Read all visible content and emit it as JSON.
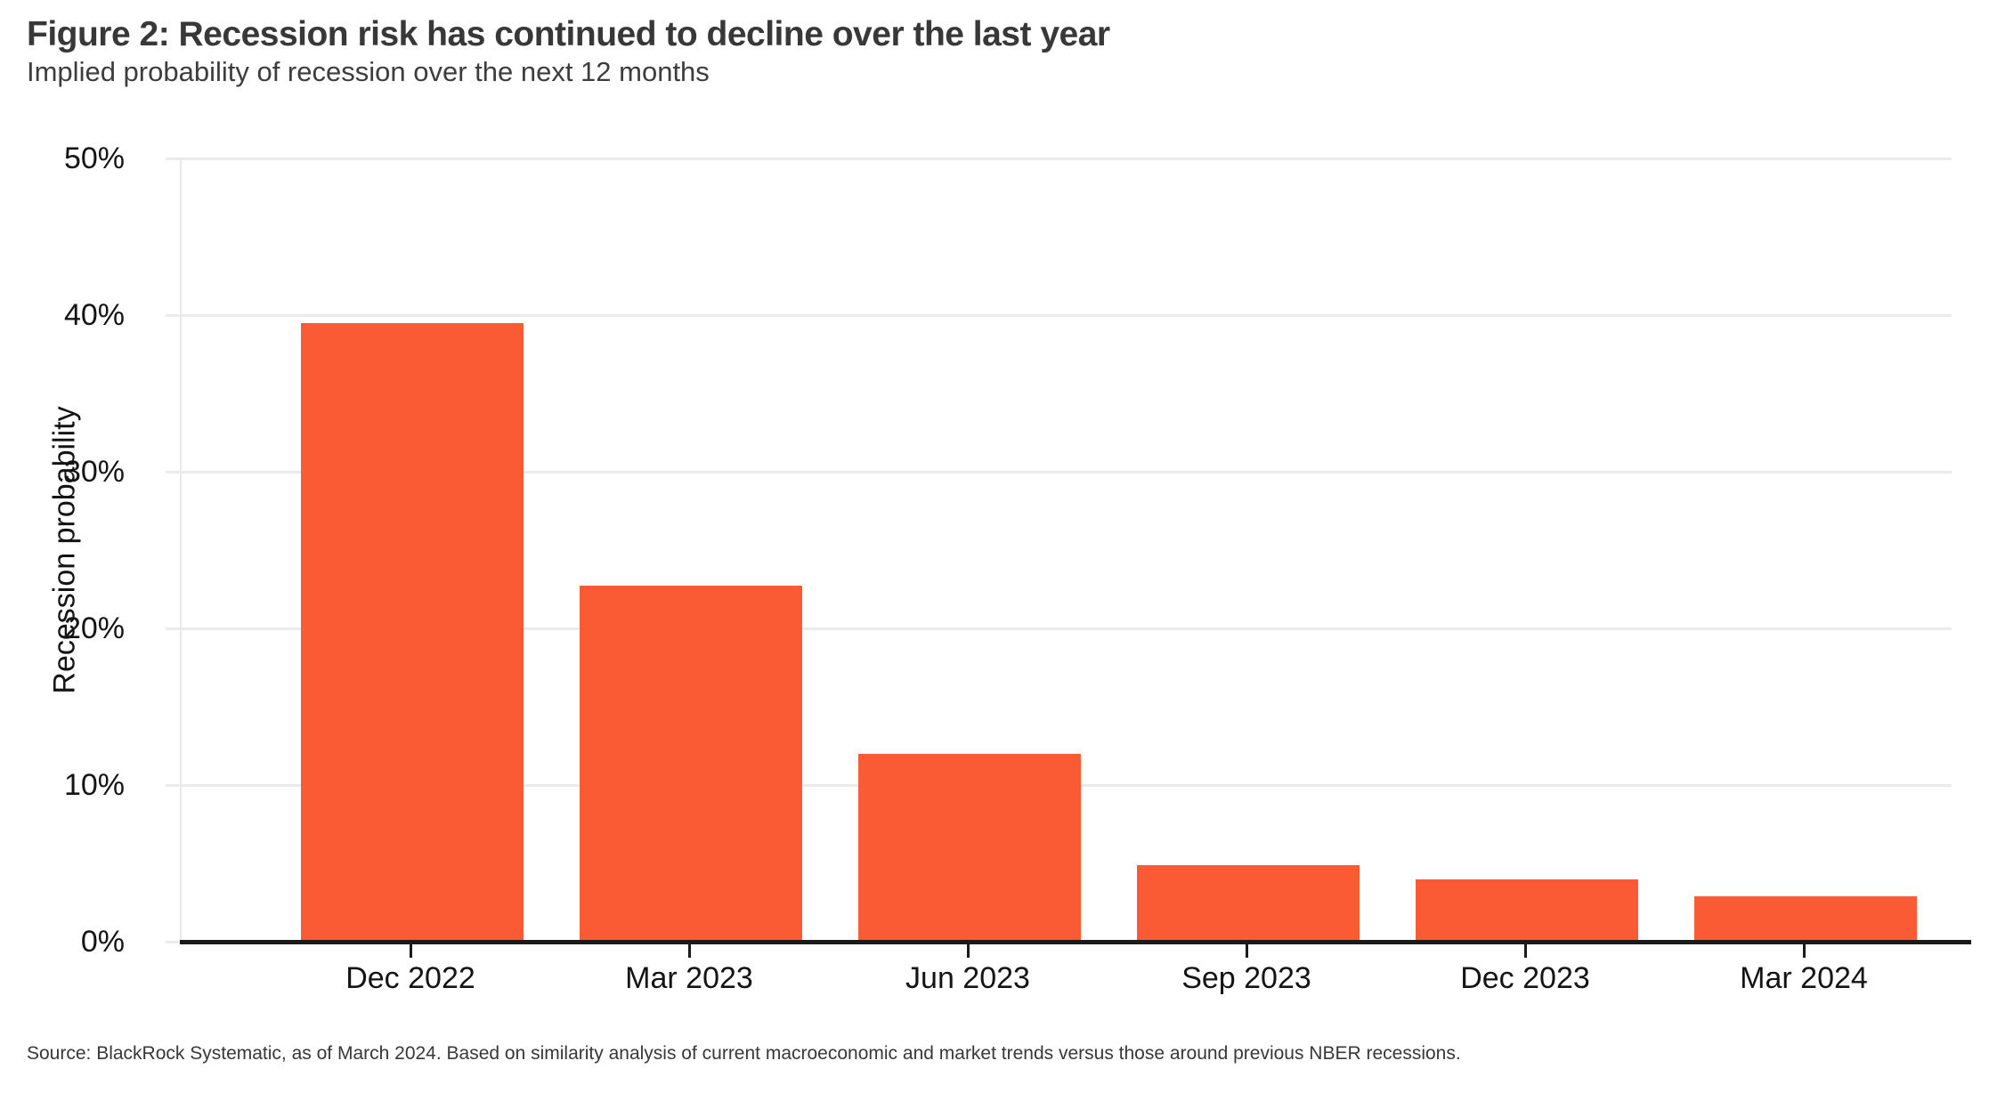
{
  "header": {
    "title": "Figure 2: Recession risk has continued to decline over the last year",
    "subtitle": "Implied probability of recession over the next 12 months"
  },
  "chart_data": {
    "type": "bar",
    "categories": [
      "Dec 2022",
      "Mar 2023",
      "Jun 2023",
      "Sep 2023",
      "Dec 2023",
      "Mar 2024"
    ],
    "values": [
      39.5,
      22.7,
      12.0,
      4.9,
      4.0,
      2.9
    ],
    "title": "Figure 2: Recession risk has continued to decline over the last year",
    "subtitle": "Implied probability of recession over the next 12 months",
    "xlabel": "",
    "ylabel": "Recession probability",
    "ylim": [
      0,
      50
    ],
    "y_tick_labels": [
      "0%",
      "10%",
      "20%",
      "30%",
      "40%",
      "50%"
    ],
    "grid": "horizontal-on",
    "legend_position": "none",
    "bar_color": "#fa5b35"
  },
  "colors": {
    "bar": "#fa5b35",
    "gridline": "#ebebeb",
    "axis_line": "#1a1a1a",
    "heading_text": "#383838",
    "label_text": "#141414"
  },
  "footer": {
    "source": "Source: BlackRock Systematic, as of March 2024. Based on similarity analysis of current macroeconomic and market trends versus those around previous NBER recessions."
  }
}
